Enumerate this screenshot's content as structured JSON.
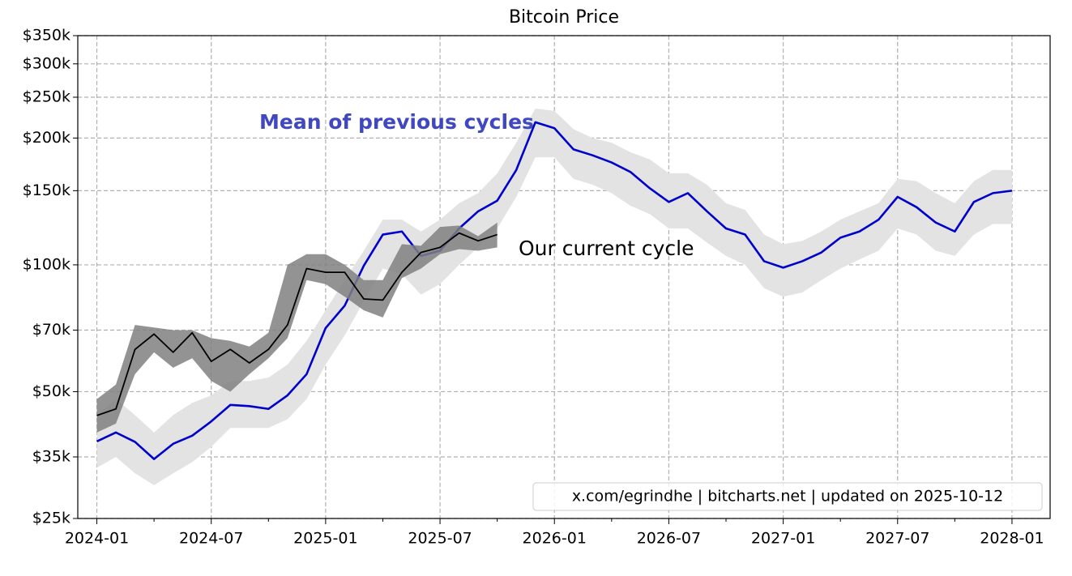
{
  "chart_data": {
    "type": "line",
    "title": "Bitcoin Price",
    "log_y": true,
    "grid": true,
    "xlim": [
      "2023-12",
      "2028-03"
    ],
    "xticks": [
      "2024-01",
      "2024-07",
      "2025-01",
      "2025-07",
      "2026-01",
      "2026-07",
      "2027-01",
      "2027-07",
      "2028-01"
    ],
    "xticks_minor": [
      "2024-04",
      "2024-10",
      "2025-04",
      "2025-10",
      "2026-04",
      "2026-10",
      "2027-04",
      "2027-10"
    ],
    "ylim": [
      25000,
      350000
    ],
    "yticks": [
      {
        "value": 25000,
        "label": "$25k"
      },
      {
        "value": 35000,
        "label": "$35k"
      },
      {
        "value": 50000,
        "label": "$50k"
      },
      {
        "value": 70000,
        "label": "$70k"
      },
      {
        "value": 100000,
        "label": "$100k"
      },
      {
        "value": 150000,
        "label": "$150k"
      },
      {
        "value": 200000,
        "label": "$200k"
      },
      {
        "value": 250000,
        "label": "$250k"
      },
      {
        "value": 300000,
        "label": "$300k"
      },
      {
        "value": 350000,
        "label": "$350k"
      }
    ],
    "series": [
      {
        "name": "Mean of previous cycles",
        "color": "#0000cc",
        "label_color": "#3f48c0",
        "band_color": "#e3e3e3",
        "x": [
          "2024-01",
          "2024-02",
          "2024-03",
          "2024-04",
          "2024-05",
          "2024-06",
          "2024-07",
          "2024-08",
          "2024-09",
          "2024-10",
          "2024-11",
          "2024-12",
          "2025-01",
          "2025-02",
          "2025-03",
          "2025-04",
          "2025-05",
          "2025-06",
          "2025-07",
          "2025-08",
          "2025-09",
          "2025-10",
          "2025-11",
          "2025-12",
          "2026-01",
          "2026-02",
          "2026-03",
          "2026-04",
          "2026-05",
          "2026-06",
          "2026-07",
          "2026-08",
          "2026-09",
          "2026-10",
          "2026-11",
          "2026-12",
          "2027-01",
          "2027-02",
          "2027-03",
          "2027-04",
          "2027-05",
          "2027-06",
          "2027-07",
          "2027-08",
          "2027-09",
          "2027-10",
          "2027-11",
          "2027-12",
          "2028-01"
        ],
        "values": [
          38100,
          40000,
          38000,
          34600,
          37600,
          39300,
          42500,
          46500,
          46200,
          45500,
          49000,
          55000,
          70800,
          80000,
          99500,
          118000,
          120000,
          105000,
          108000,
          122000,
          134000,
          142000,
          168000,
          218000,
          211000,
          188000,
          182000,
          175000,
          166000,
          152000,
          141000,
          148000,
          134000,
          122000,
          118000,
          102000,
          98500,
          102000,
          107000,
          116000,
          120000,
          128000,
          145000,
          137000,
          126000,
          120000,
          141000,
          148000,
          150000
        ],
        "band_lower": [
          33000,
          35000,
          32000,
          30000,
          32000,
          34000,
          37000,
          41000,
          41000,
          41000,
          43000,
          48000,
          58000,
          68000,
          82000,
          98000,
          95000,
          85000,
          90000,
          100000,
          110000,
          122000,
          145000,
          180000,
          180000,
          160000,
          155000,
          148000,
          138000,
          132000,
          122000,
          122000,
          113000,
          105000,
          100000,
          88000,
          84000,
          86000,
          92000,
          98000,
          103000,
          108000,
          122000,
          118000,
          108000,
          105000,
          118000,
          125000,
          125000
        ],
        "band_upper": [
          44000,
          48000,
          44000,
          40000,
          44000,
          47000,
          49000,
          53000,
          53000,
          54000,
          58000,
          66000,
          78000,
          92000,
          108000,
          128000,
          128000,
          120000,
          128000,
          140000,
          148000,
          165000,
          195000,
          235000,
          232000,
          210000,
          200000,
          195000,
          185000,
          178000,
          165000,
          165000,
          155000,
          140000,
          135000,
          118000,
          112000,
          114000,
          120000,
          128000,
          134000,
          140000,
          160000,
          158000,
          148000,
          140000,
          158000,
          168000,
          168000
        ]
      },
      {
        "name": "Our current cycle",
        "color": "#000000",
        "label_color": "#000000",
        "raw_color": "#808080",
        "x": [
          "2024-01",
          "2024-02",
          "2024-03",
          "2024-04",
          "2024-05",
          "2024-06",
          "2024-07",
          "2024-08",
          "2024-09",
          "2024-10",
          "2024-11",
          "2024-12",
          "2025-01",
          "2025-02",
          "2025-03",
          "2025-04",
          "2025-05",
          "2025-06",
          "2025-07",
          "2025-08",
          "2025-09",
          "2025-10"
        ],
        "values": [
          43900,
          45500,
          63000,
          68500,
          62000,
          69000,
          59000,
          63000,
          58500,
          63000,
          72000,
          98000,
          96000,
          96000,
          83000,
          82500,
          96000,
          107000,
          110000,
          119000,
          114000,
          118000
        ],
        "raw_low": [
          40000,
          42000,
          55000,
          62000,
          57000,
          60000,
          53000,
          50000,
          55000,
          60000,
          67000,
          92000,
          90000,
          84000,
          78000,
          75000,
          93000,
          98000,
          106000,
          109000,
          108000,
          110000
        ],
        "raw_high": [
          48000,
          52000,
          72000,
          71000,
          70000,
          70000,
          67000,
          66000,
          64000,
          69000,
          100000,
          106000,
          106000,
          100000,
          92000,
          92000,
          112000,
          111000,
          123000,
          124000,
          117000,
          126000
        ]
      }
    ],
    "footer": "x.com/egrindhe | bitcharts.net | updated on 2025-10-12"
  }
}
